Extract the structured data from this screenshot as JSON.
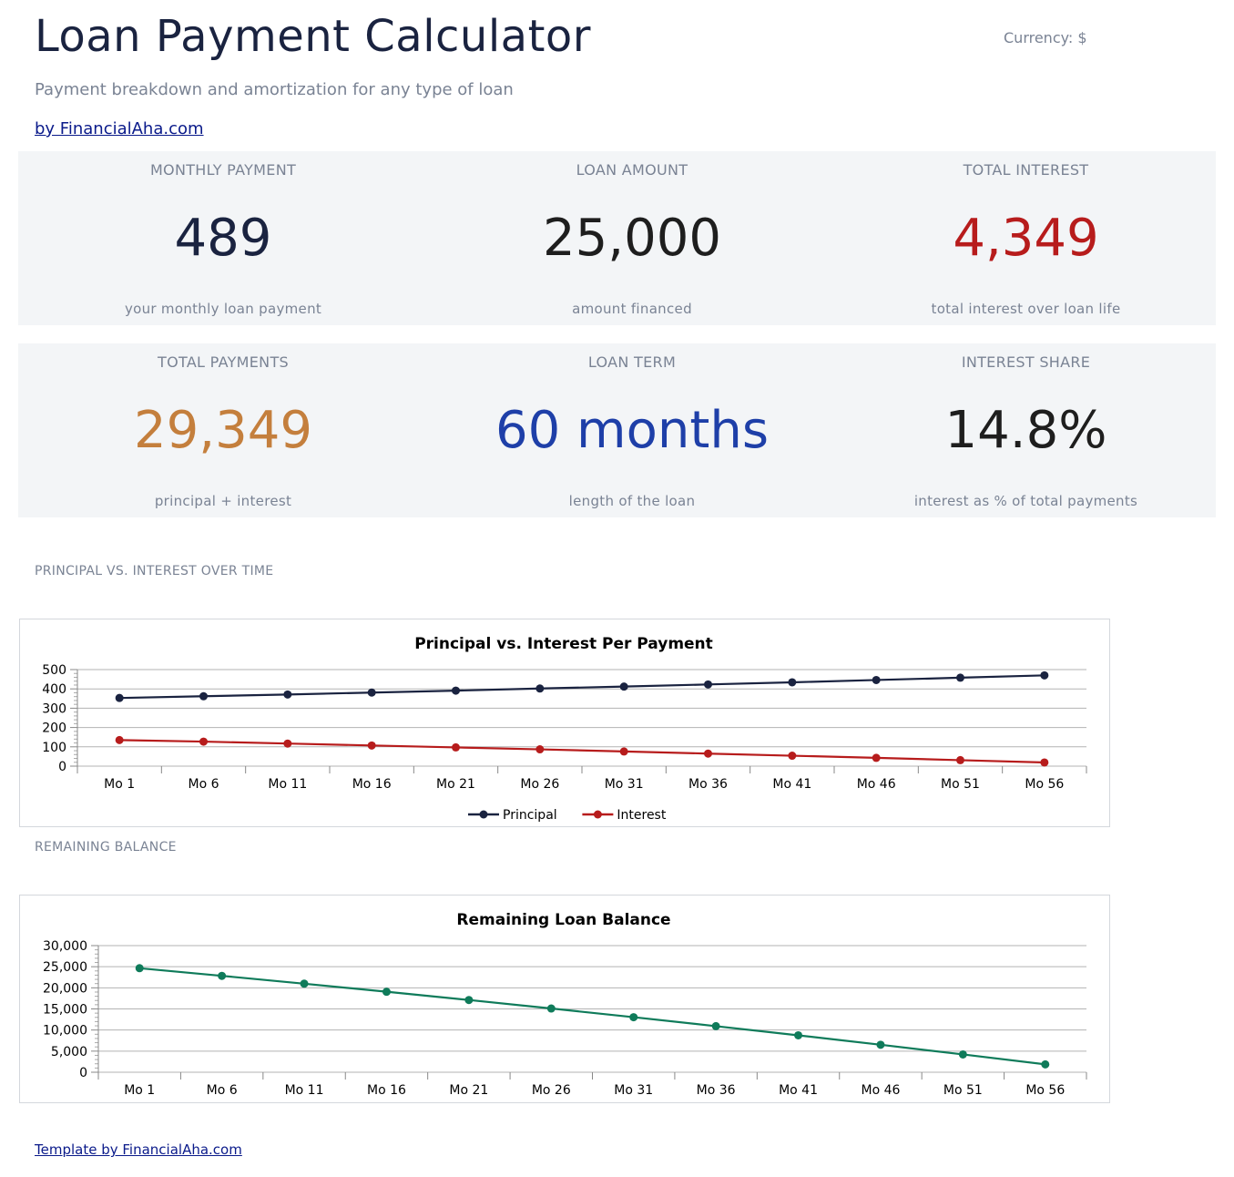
{
  "header": {
    "title": "Loan Payment Calculator",
    "currency": "Currency: $",
    "subtitle": "Payment breakdown and amortization for any type of loan",
    "byline": "by FinancialAha.com"
  },
  "kpis": {
    "row1": [
      {
        "label": "MONTHLY PAYMENT",
        "value": "489",
        "sub": "your monthly loan payment",
        "color": "#1a2340"
      },
      {
        "label": "LOAN AMOUNT",
        "value": "25,000",
        "sub": "amount financed",
        "color": "#1e1e1e"
      },
      {
        "label": "TOTAL INTEREST",
        "value": "4,349",
        "sub": "total interest over loan life",
        "color": "#b71c1c"
      }
    ],
    "row2": [
      {
        "label": "TOTAL PAYMENTS",
        "value": "29,349",
        "sub": "principal + interest",
        "color": "#c47f3d"
      },
      {
        "label": "LOAN TERM",
        "value": "60 months",
        "sub": "length of the loan",
        "color": "#1e3fa8"
      },
      {
        "label": "INTEREST SHARE",
        "value": "14.8%",
        "sub": "interest as % of total payments",
        "color": "#1e1e1e"
      }
    ]
  },
  "sections": {
    "principal_interest": "PRINCIPAL VS. INTEREST OVER TIME",
    "balance": "REMAINING BALANCE"
  },
  "footer": {
    "link": "Template by FinancialAha.com"
  },
  "chart_data": [
    {
      "type": "line",
      "title": "Principal vs. Interest Per Payment",
      "categories": [
        "Mo 1",
        "Mo 6",
        "Mo 11",
        "Mo 16",
        "Mo 21",
        "Mo 26",
        "Mo 31",
        "Mo 36",
        "Mo 41",
        "Mo 46",
        "Mo 51",
        "Mo 56"
      ],
      "yticks": [
        "0",
        "100",
        "200",
        "300",
        "400",
        "500"
      ],
      "ylim": [
        0,
        500
      ],
      "grid": true,
      "legend": "bottom",
      "series": [
        {
          "name": "Principal",
          "color": "#1a2340",
          "values": [
            353,
            362,
            371,
            381,
            391,
            402,
            412,
            423,
            434,
            446,
            458,
            470
          ]
        },
        {
          "name": "Interest",
          "color": "#b71c1c",
          "values": [
            135,
            127,
            117,
            107,
            97,
            87,
            76,
            65,
            54,
            43,
            31,
            19
          ]
        }
      ]
    },
    {
      "type": "line",
      "title": "Remaining Loan Balance",
      "categories": [
        "Mo 1",
        "Mo 6",
        "Mo 11",
        "Mo 16",
        "Mo 21",
        "Mo 26",
        "Mo 31",
        "Mo 36",
        "Mo 41",
        "Mo 46",
        "Mo 51",
        "Mo 56"
      ],
      "yticks": [
        "0",
        "5,000",
        "10,000",
        "15,000",
        "20,000",
        "25,000",
        "30,000"
      ],
      "ylim": [
        0,
        30000
      ],
      "grid": true,
      "legend": "none",
      "series": [
        {
          "color": "#0f7b5a",
          "values": [
            24647,
            22834,
            20977,
            19070,
            17112,
            15102,
            13038,
            10919,
            8744,
            6510,
            4216,
            1861
          ]
        }
      ]
    }
  ]
}
